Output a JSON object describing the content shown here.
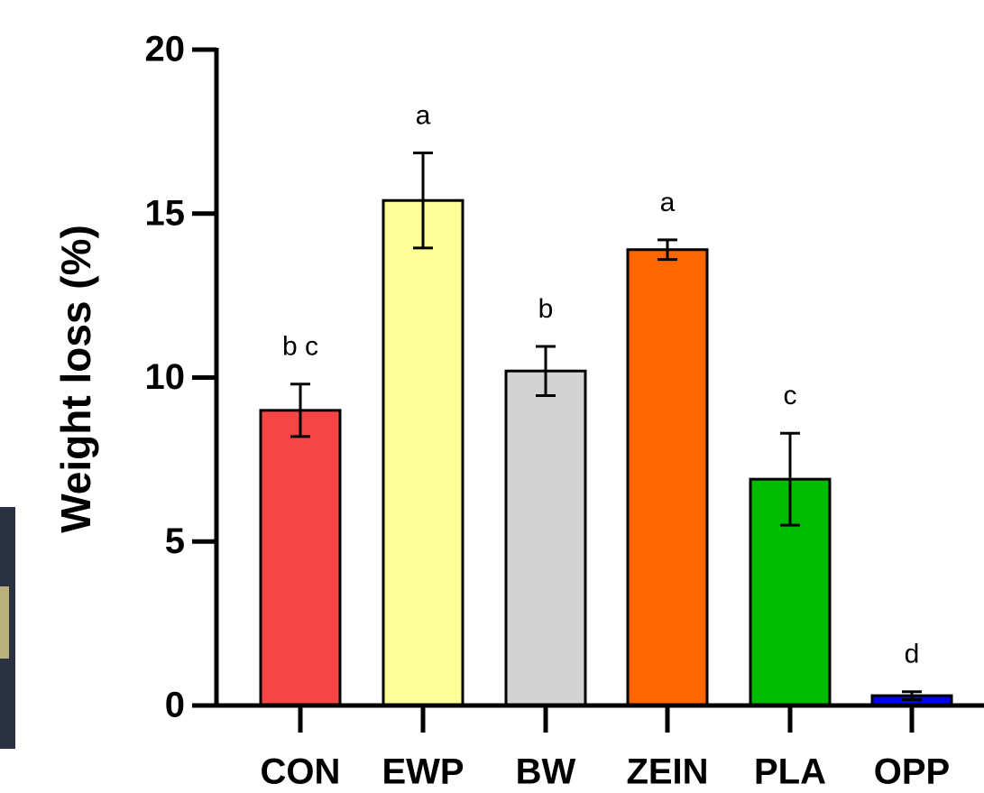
{
  "chart_data": {
    "type": "bar",
    "y_label": "Weight loss (%)",
    "categories": [
      "CON",
      "EWP",
      "BW",
      "ZEIN",
      "PLA",
      "OPP"
    ],
    "values": [
      9.0,
      15.4,
      10.2,
      13.9,
      6.9,
      0.3
    ],
    "errors": [
      0.8,
      1.45,
      0.75,
      0.3,
      1.4,
      0.12
    ],
    "significance_labels": [
      "b c",
      "a",
      "b",
      "a",
      "c",
      "d"
    ],
    "colors": [
      "#f74545",
      "#ffff99",
      "#d3d3d3",
      "#ff6600",
      "#00bb00",
      "#0000ff"
    ],
    "ylim": [
      0,
      20
    ],
    "yticks": [
      0,
      5,
      10,
      15,
      20
    ]
  }
}
